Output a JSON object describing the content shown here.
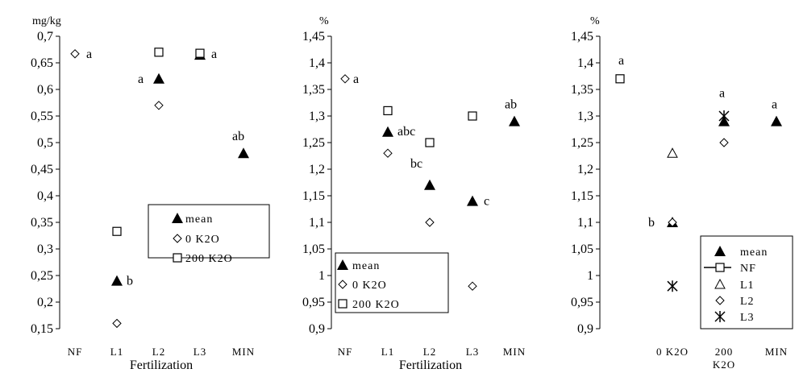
{
  "chart_data": [
    {
      "type": "scatter",
      "unit_label": "mg/kg",
      "xlabel": "Fertilization",
      "ylim": [
        0.15,
        0.7
      ],
      "yticks": [
        "0,15",
        "0,2",
        "0,25",
        "0,3",
        "0,35",
        "0,4",
        "0,45",
        "0,5",
        "0,55",
        "0,6",
        "0,65",
        "0,7"
      ],
      "categories": [
        "NF",
        "L1",
        "L2",
        "L3",
        "MIN"
      ],
      "series": [
        {
          "name": "mean",
          "marker": "triangle",
          "points": [
            [
              1.0,
              0.24
            ],
            [
              2.0,
              0.62
            ],
            [
              3.0,
              0.665
            ],
            [
              4.0,
              0.48
            ]
          ]
        },
        {
          "name": "0 K2O",
          "marker": "diamond",
          "points": [
            [
              0.0,
              0.667
            ],
            [
              1.0,
              0.16
            ],
            [
              2.0,
              0.57
            ]
          ]
        },
        {
          "name": "200 K2O",
          "marker": "square",
          "points": [
            [
              1.0,
              0.333
            ],
            [
              2.0,
              0.67
            ],
            [
              3.0,
              0.668
            ]
          ]
        }
      ],
      "annotations": [
        {
          "text": "a",
          "x": 0.0,
          "y": 0.667
        },
        {
          "text": "b",
          "x": 1.0,
          "y": 0.24
        },
        {
          "text": "a",
          "x": 2.0,
          "y": 0.62
        },
        {
          "text": "a",
          "x": 3.0,
          "y": 0.667
        },
        {
          "text": "ab",
          "x": 4.0,
          "y": 0.48
        }
      ],
      "legend": {
        "placement": "lower-right",
        "entries": [
          "mean",
          "0 K2O",
          "200 K2O"
        ]
      }
    },
    {
      "type": "scatter",
      "unit_label": "%",
      "xlabel": "Fertilization",
      "ylim": [
        0.9,
        1.45
      ],
      "yticks": [
        "0,9",
        "0,95",
        "1",
        "1,05",
        "1,1",
        "1,15",
        "1,2",
        "1,25",
        "1,3",
        "1,35",
        "1,4",
        "1,45"
      ],
      "categories": [
        "NF",
        "L1",
        "L2",
        "L3",
        "MIN"
      ],
      "series": [
        {
          "name": "mean",
          "marker": "triangle",
          "points": [
            [
              1.0,
              1.27
            ],
            [
              2.0,
              1.17
            ],
            [
              3.0,
              1.14
            ],
            [
              4.0,
              1.29
            ]
          ]
        },
        {
          "name": "0 K2O",
          "marker": "diamond",
          "points": [
            [
              0.0,
              1.37
            ],
            [
              1.0,
              1.23
            ],
            [
              2.0,
              1.1
            ],
            [
              3.0,
              0.98
            ]
          ]
        },
        {
          "name": "200 K2O",
          "marker": "square",
          "points": [
            [
              1.0,
              1.31
            ],
            [
              2.0,
              1.25
            ],
            [
              3.0,
              1.3
            ]
          ]
        }
      ],
      "annotations": [
        {
          "text": "a",
          "x": 0.0,
          "y": 1.37
        },
        {
          "text": "abc",
          "x": 1.0,
          "y": 1.27
        },
        {
          "text": "bc",
          "x": 2.0,
          "y": 1.17
        },
        {
          "text": "c",
          "x": 3.0,
          "y": 1.14
        },
        {
          "text": "ab",
          "x": 4.0,
          "y": 1.29
        }
      ],
      "legend": {
        "placement": "lower-left",
        "entries": [
          "mean",
          "0 K2O",
          "200 K2O"
        ]
      }
    },
    {
      "type": "scatter",
      "unit_label": "%",
      "xlabel": "",
      "ylim": [
        0.9,
        1.45
      ],
      "yticks": [
        "0,9",
        "0,95",
        "1",
        "1,05",
        "1,1",
        "1,15",
        "1,2",
        "1,25",
        "1,3",
        "1,35",
        "1,4",
        "1,45"
      ],
      "categories": [
        "",
        "0 K2O",
        "200|K2O",
        "MIN"
      ],
      "series": [
        {
          "name": "mean",
          "marker": "triangle",
          "points": [
            [
              1.0,
              1.1
            ],
            [
              2.0,
              1.29
            ],
            [
              3.0,
              1.29
            ]
          ]
        },
        {
          "name": "NF",
          "marker": "square",
          "points": [
            [
              0.0,
              1.37
            ]
          ]
        },
        {
          "name": "L1",
          "marker": "triangle-open",
          "points": [
            [
              1.0,
              1.23
            ]
          ]
        },
        {
          "name": "L2",
          "marker": "diamond",
          "points": [
            [
              1.0,
              1.1
            ],
            [
              2.0,
              1.25
            ]
          ]
        },
        {
          "name": "L3",
          "marker": "asterisk",
          "points": [
            [
              1.0,
              0.98
            ],
            [
              2.0,
              1.3
            ]
          ]
        }
      ],
      "annotations": [
        {
          "text": "a",
          "x": 0.0,
          "y": 1.37
        },
        {
          "text": "b",
          "x": 1.0,
          "y": 1.1
        },
        {
          "text": "a",
          "x": 2.0,
          "y": 1.31
        },
        {
          "text": "a",
          "x": 3.0,
          "y": 1.29
        }
      ],
      "legend": {
        "placement": "lower-right",
        "entries": [
          "mean",
          "NF",
          "L1",
          "L2",
          "L3"
        ]
      }
    }
  ]
}
